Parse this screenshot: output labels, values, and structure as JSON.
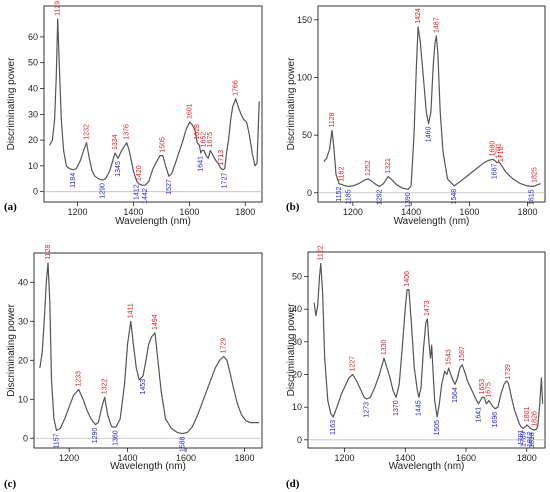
{
  "colors": {
    "curve": "#555555",
    "baseline": "#bdbdbd",
    "peak_label": "#d62728",
    "trough_label": "#2a2ad0",
    "frame": "#000000"
  },
  "chart_data": [
    {
      "type": "line",
      "panel_label": "(a)",
      "xlabel": "Wavelength (nm)",
      "ylabel": "Discriminating power",
      "xlim": [
        1080,
        1860
      ],
      "ylim": [
        -4,
        72
      ],
      "x_ticks": [
        1200,
        1400,
        1600,
        1800
      ],
      "y_ticks": [
        0,
        10,
        20,
        30,
        40,
        50,
        60
      ],
      "x": [
        1100,
        1110,
        1118,
        1124,
        1129,
        1135,
        1142,
        1150,
        1160,
        1170,
        1184,
        1196,
        1210,
        1222,
        1232,
        1242,
        1252,
        1262,
        1275,
        1290,
        1300,
        1315,
        1334,
        1345,
        1358,
        1376,
        1385,
        1400,
        1412,
        1420,
        1431,
        1442,
        1455,
        1470,
        1485,
        1495,
        1505,
        1515,
        1527,
        1537,
        1550,
        1562,
        1575,
        1588,
        1601,
        1610,
        1620,
        1628,
        1636,
        1641,
        1646,
        1652,
        1660,
        1668,
        1675,
        1685,
        1695,
        1703,
        1713,
        1720,
        1727,
        1733,
        1740,
        1748,
        1755,
        1766,
        1775,
        1785,
        1795,
        1805,
        1815,
        1825,
        1835,
        1842,
        1850
      ],
      "y": [
        18,
        20,
        28,
        45,
        67,
        48,
        28,
        16,
        10,
        9,
        8.5,
        9,
        12,
        16,
        19,
        13,
        8,
        6,
        5,
        4.5,
        5,
        8,
        15,
        13,
        16,
        19,
        16,
        8,
        4,
        3,
        2.5,
        2.5,
        4,
        9,
        12,
        14,
        14,
        10,
        6,
        7,
        11,
        15,
        19,
        24,
        27,
        26,
        24,
        19,
        18,
        15,
        16,
        16,
        14,
        13,
        16,
        14,
        12,
        11,
        9,
        8.5,
        9,
        15,
        20,
        28,
        33,
        36,
        33,
        30,
        28,
        27,
        22,
        15,
        10,
        11,
        35
      ],
      "peak_labels": [
        {
          "text": "1129",
          "x": 1129,
          "y": 67
        },
        {
          "text": "1232",
          "x": 1232,
          "y": 19
        },
        {
          "text": "1334",
          "x": 1334,
          "y": 15
        },
        {
          "text": "1376",
          "x": 1376,
          "y": 19
        },
        {
          "text": "1420",
          "x": 1420,
          "y": 3
        },
        {
          "text": "1505",
          "x": 1505,
          "y": 14
        },
        {
          "text": "1601",
          "x": 1601,
          "y": 27
        },
        {
          "text": "1628",
          "x": 1628,
          "y": 19
        },
        {
          "text": "1652",
          "x": 1652,
          "y": 16
        },
        {
          "text": "1675",
          "x": 1675,
          "y": 16
        },
        {
          "text": "1713",
          "x": 1713,
          "y": 9
        },
        {
          "text": "1766",
          "x": 1766,
          "y": 36
        }
      ],
      "trough_labels": [
        {
          "text": "1184",
          "x": 1184,
          "y": 8.5
        },
        {
          "text": "1290",
          "x": 1290,
          "y": 4.5
        },
        {
          "text": "1345",
          "x": 1345,
          "y": 13
        },
        {
          "text": "1412",
          "x": 1412,
          "y": 4
        },
        {
          "text": "1442",
          "x": 1442,
          "y": 2.5
        },
        {
          "text": "1527",
          "x": 1527,
          "y": 6
        },
        {
          "text": "1641",
          "x": 1641,
          "y": 15
        },
        {
          "text": "1727",
          "x": 1727,
          "y": 8.5
        }
      ]
    },
    {
      "type": "line",
      "panel_label": "(b)",
      "xlabel": "Wavelength (nm)",
      "ylabel": "Discriminating power",
      "xlim": [
        1080,
        1860
      ],
      "ylim": [
        -8,
        162
      ],
      "x_ticks": [
        1200,
        1400,
        1600,
        1800
      ],
      "y_ticks": [
        0,
        50,
        100,
        150
      ],
      "x": [
        1100,
        1110,
        1120,
        1128,
        1135,
        1142,
        1152,
        1162,
        1175,
        1185,
        1200,
        1220,
        1240,
        1252,
        1265,
        1280,
        1292,
        1305,
        1321,
        1335,
        1350,
        1370,
        1390,
        1400,
        1410,
        1418,
        1424,
        1432,
        1442,
        1452,
        1460,
        1468,
        1476,
        1482,
        1487,
        1492,
        1500,
        1510,
        1525,
        1548,
        1570,
        1590,
        1610,
        1630,
        1650,
        1665,
        1680,
        1687,
        1695,
        1701,
        1710,
        1725,
        1750,
        1775,
        1800,
        1815,
        1825,
        1835,
        1845
      ],
      "y": [
        27,
        30,
        38,
        54,
        38,
        16,
        8,
        7,
        6,
        5.5,
        6,
        8,
        11,
        12,
        10,
        7,
        5.5,
        8,
        14,
        11,
        7,
        4,
        3,
        6,
        50,
        110,
        144,
        130,
        100,
        70,
        60,
        70,
        110,
        130,
        136,
        120,
        70,
        35,
        12,
        6,
        10,
        14,
        18,
        22,
        26,
        28,
        29,
        28,
        26,
        27,
        24,
        18,
        12,
        8,
        6,
        5.5,
        6,
        7,
        8
      ],
      "peak_labels": [
        {
          "text": "1128",
          "x": 1128,
          "y": 54
        },
        {
          "text": "1162",
          "x": 1162,
          "y": 7
        },
        {
          "text": "1252",
          "x": 1252,
          "y": 12
        },
        {
          "text": "1321",
          "x": 1321,
          "y": 14
        },
        {
          "text": "1424",
          "x": 1424,
          "y": 144
        },
        {
          "text": "1487",
          "x": 1487,
          "y": 136
        },
        {
          "text": "1680",
          "x": 1680,
          "y": 29
        },
        {
          "text": "1701",
          "x": 1701,
          "y": 27
        },
        {
          "text": "1710",
          "x": 1710,
          "y": 24
        },
        {
          "text": "1825",
          "x": 1825,
          "y": 6
        }
      ],
      "trough_labels": [
        {
          "text": "1152",
          "x": 1152,
          "y": 8
        },
        {
          "text": "1185",
          "x": 1185,
          "y": 5.5
        },
        {
          "text": "1292",
          "x": 1292,
          "y": 5.5
        },
        {
          "text": "1390",
          "x": 1390,
          "y": 3
        },
        {
          "text": "1460",
          "x": 1460,
          "y": 60
        },
        {
          "text": "1548",
          "x": 1548,
          "y": 6
        },
        {
          "text": "1687",
          "x": 1687,
          "y": 28
        },
        {
          "text": "1815",
          "x": 1815,
          "y": 5.5
        }
      ]
    },
    {
      "type": "line",
      "panel_label": "(c)",
      "xlabel": "Wavelength (nm)",
      "ylabel": "Discriminating power",
      "xlim": [
        1080,
        1860
      ],
      "ylim": [
        -2.5,
        47.5
      ],
      "x_ticks": [
        1200,
        1400,
        1600,
        1800
      ],
      "y_ticks": [
        0,
        10,
        20,
        30,
        40
      ],
      "x": [
        1100,
        1108,
        1115,
        1122,
        1128,
        1134,
        1140,
        1148,
        1157,
        1170,
        1185,
        1200,
        1215,
        1233,
        1248,
        1262,
        1275,
        1290,
        1300,
        1312,
        1322,
        1332,
        1345,
        1360,
        1375,
        1390,
        1400,
        1411,
        1420,
        1430,
        1440,
        1453,
        1463,
        1472,
        1482,
        1494,
        1504,
        1515,
        1530,
        1550,
        1570,
        1588,
        1605,
        1622,
        1640,
        1660,
        1680,
        1700,
        1715,
        1729,
        1740,
        1750,
        1762,
        1775,
        1790,
        1805,
        1820,
        1835,
        1850
      ],
      "y": [
        18,
        22,
        30,
        40,
        45,
        35,
        15,
        5,
        2,
        2.5,
        5,
        8,
        11,
        12.5,
        10,
        7,
        5,
        3.5,
        4,
        8,
        10.5,
        6,
        3,
        2.8,
        5,
        14,
        24,
        30,
        24,
        18,
        15,
        16,
        20,
        24,
        26,
        27,
        20,
        12,
        5,
        2.5,
        1.5,
        1.2,
        1.5,
        3,
        6,
        10,
        14,
        18,
        20,
        21,
        20,
        17,
        13,
        9,
        6,
        4.5,
        4,
        4,
        4
      ],
      "peak_labels": [
        {
          "text": "1128",
          "x": 1128,
          "y": 45
        },
        {
          "text": "1233",
          "x": 1233,
          "y": 12.5
        },
        {
          "text": "1322",
          "x": 1322,
          "y": 10.5
        },
        {
          "text": "1411",
          "x": 1411,
          "y": 30
        },
        {
          "text": "1494",
          "x": 1494,
          "y": 27
        },
        {
          "text": "1729",
          "x": 1729,
          "y": 21
        }
      ],
      "trough_labels": [
        {
          "text": "1157",
          "x": 1157,
          "y": 2
        },
        {
          "text": "1290",
          "x": 1290,
          "y": 3.5
        },
        {
          "text": "1360",
          "x": 1360,
          "y": 2.8
        },
        {
          "text": "1453",
          "x": 1453,
          "y": 16
        },
        {
          "text": "1588",
          "x": 1588,
          "y": 1.2
        }
      ]
    },
    {
      "type": "line",
      "panel_label": "(d)",
      "xlabel": "Wavelength (nm)",
      "ylabel": "Discriminating power",
      "xlim": [
        1080,
        1860
      ],
      "ylim": [
        -2.5,
        57.5
      ],
      "x_ticks": [
        1200,
        1400,
        1600,
        1800
      ],
      "y_ticks": [
        0,
        10,
        20,
        30,
        40,
        50
      ],
      "x": [
        1100,
        1106,
        1112,
        1118,
        1122,
        1128,
        1135,
        1145,
        1155,
        1163,
        1175,
        1190,
        1205,
        1215,
        1227,
        1240,
        1255,
        1265,
        1273,
        1285,
        1300,
        1315,
        1330,
        1340,
        1350,
        1360,
        1370,
        1380,
        1390,
        1400,
        1406,
        1412,
        1420,
        1430,
        1440,
        1445,
        1452,
        1460,
        1468,
        1473,
        1478,
        1483,
        1487,
        1492,
        1497,
        1505,
        1512,
        1520,
        1530,
        1537,
        1543,
        1550,
        1558,
        1564,
        1572,
        1580,
        1587,
        1595,
        1605,
        1615,
        1625,
        1635,
        1641,
        1647,
        1653,
        1660,
        1667,
        1675,
        1683,
        1690,
        1696,
        1705,
        1715,
        1725,
        1733,
        1739,
        1745,
        1752,
        1760,
        1768,
        1775,
        1781,
        1789,
        1795,
        1801,
        1807,
        1812,
        1818,
        1824,
        1830,
        1836,
        1842,
        1848,
        1852
      ],
      "y": [
        42,
        38,
        41,
        50,
        54,
        45,
        25,
        12,
        8,
        7,
        10,
        14,
        17,
        19,
        20,
        18,
        15,
        13,
        12.5,
        13,
        16,
        20,
        25,
        22,
        19,
        15,
        13,
        17,
        28,
        40,
        46,
        46,
        36,
        22,
        15,
        13,
        16,
        28,
        36,
        37,
        30,
        25,
        29,
        20,
        12,
        7,
        11,
        17,
        21,
        20,
        22,
        20,
        18,
        17,
        19,
        22,
        23,
        21,
        18,
        16,
        14,
        12,
        11,
        12,
        13,
        13,
        11,
        12,
        11,
        10,
        9.5,
        10,
        14,
        17,
        18,
        17.5,
        15,
        12,
        9,
        7,
        5,
        4,
        3.5,
        4,
        4.5,
        4,
        3.5,
        3.2,
        3,
        3.1,
        4,
        10,
        19,
        11
      ],
      "peak_labels": [
        {
          "text": "1122",
          "x": 1122,
          "y": 54
        },
        {
          "text": "1227",
          "x": 1227,
          "y": 20
        },
        {
          "text": "1330",
          "x": 1330,
          "y": 25
        },
        {
          "text": "1406",
          "x": 1406,
          "y": 46
        },
        {
          "text": "1473",
          "x": 1473,
          "y": 37
        },
        {
          "text": "1543",
          "x": 1543,
          "y": 22
        },
        {
          "text": "1587",
          "x": 1587,
          "y": 23
        },
        {
          "text": "1653",
          "x": 1653,
          "y": 13
        },
        {
          "text": "1675",
          "x": 1675,
          "y": 12
        },
        {
          "text": "1739",
          "x": 1739,
          "y": 17.5
        },
        {
          "text": "1801",
          "x": 1801,
          "y": 4.5
        },
        {
          "text": "1826",
          "x": 1826,
          "y": 3.1
        }
      ],
      "trough_labels": [
        {
          "text": "1163",
          "x": 1163,
          "y": 7
        },
        {
          "text": "1273",
          "x": 1273,
          "y": 12.5
        },
        {
          "text": "1370",
          "x": 1370,
          "y": 13
        },
        {
          "text": "1445",
          "x": 1445,
          "y": 13
        },
        {
          "text": "1505",
          "x": 1505,
          "y": 7
        },
        {
          "text": "1564",
          "x": 1564,
          "y": 17
        },
        {
          "text": "1641",
          "x": 1641,
          "y": 11
        },
        {
          "text": "1696",
          "x": 1696,
          "y": 9.5
        },
        {
          "text": "1781",
          "x": 1781,
          "y": 4
        },
        {
          "text": "1789",
          "x": 1789,
          "y": 3.5
        },
        {
          "text": "1812",
          "x": 1812,
          "y": 3.5
        },
        {
          "text": "1818",
          "x": 1818,
          "y": 3.2
        }
      ]
    }
  ]
}
